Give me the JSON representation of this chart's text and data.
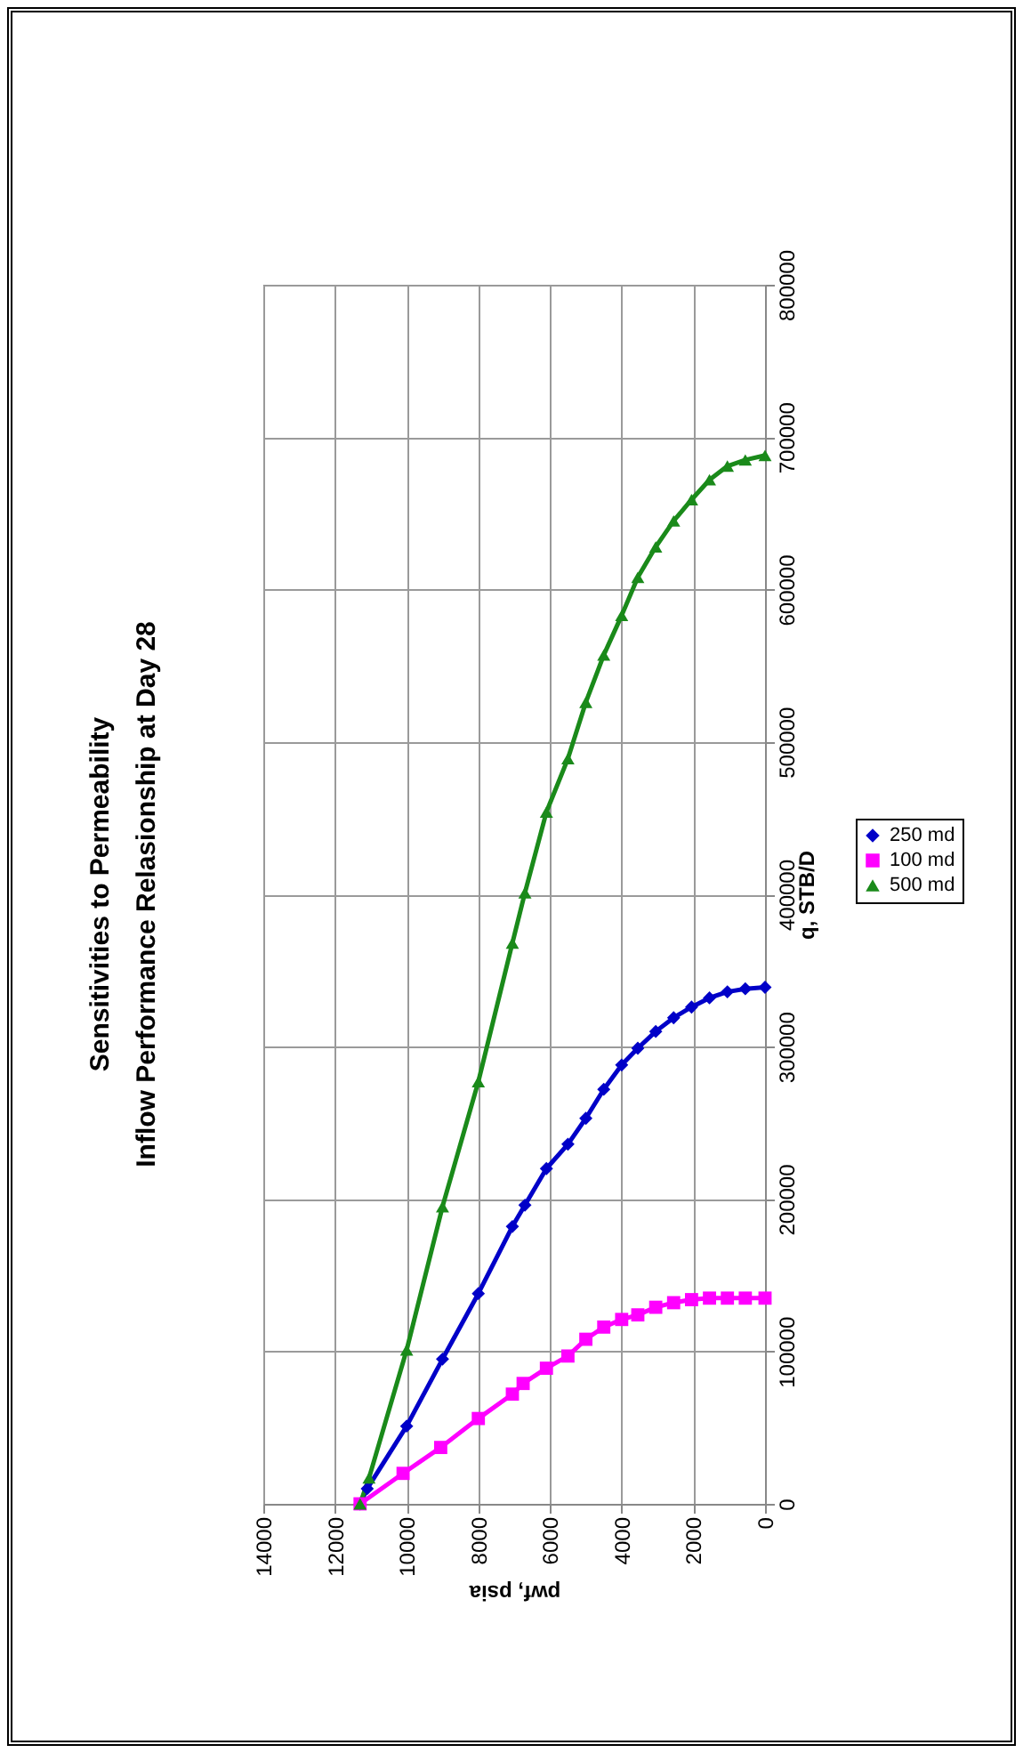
{
  "chart_data": {
    "type": "line",
    "title": "Sensitivities to Permeability\nInflow Performance Relasionship at Day 28",
    "xlabel": "pwf, psia",
    "ylabel": "q, STB/D",
    "xlim": [
      14000,
      0
    ],
    "xticks": [
      14000,
      12000,
      10000,
      8000,
      6000,
      4000,
      2000,
      0
    ],
    "ylim": [
      0,
      800000
    ],
    "yticks": [
      0,
      100000,
      200000,
      300000,
      400000,
      500000,
      600000,
      700000,
      800000
    ],
    "grid": true,
    "legend": "right",
    "series": [
      {
        "name": "250 md",
        "color": "#0000c8",
        "marker": "diamond",
        "x": [
          11300,
          11100,
          10000,
          9000,
          8000,
          7050,
          6700,
          6100,
          5500,
          5000,
          4500,
          4000,
          3550,
          3050,
          2550,
          2050,
          1550,
          1050,
          550,
          0
        ],
        "values": [
          0,
          10000,
          51000,
          95000,
          138000,
          182000,
          196000,
          220000,
          236000,
          253000,
          272000,
          288000,
          299000,
          310000,
          319000,
          326000,
          332000,
          336000,
          338000,
          339000
        ]
      },
      {
        "name": "100 md",
        "color": "#ff00ff",
        "marker": "square",
        "x": [
          11300,
          10100,
          9050,
          8000,
          7050,
          6750,
          6100,
          5500,
          5000,
          4500,
          4000,
          3550,
          3050,
          2550,
          2050,
          1550,
          1050,
          550,
          0
        ],
        "values": [
          0,
          20000,
          37000,
          56000,
          72000,
          79000,
          89000,
          97000,
          108000,
          116000,
          121000,
          124000,
          129000,
          132000,
          134000,
          135000,
          135000,
          135000,
          135000
        ]
      },
      {
        "name": "500 md",
        "color": "#1a8a1a",
        "marker": "triangle",
        "x": [
          11300,
          11050,
          10000,
          9000,
          8000,
          7050,
          6700,
          6100,
          5500,
          5000,
          4500,
          4000,
          3550,
          3050,
          2550,
          2050,
          1550,
          1050,
          550,
          0
        ],
        "values": [
          0,
          17000,
          101000,
          195000,
          277000,
          368000,
          401000,
          454000,
          489000,
          526000,
          557000,
          583000,
          608000,
          628000,
          645000,
          659000,
          672000,
          681000,
          685000,
          688000
        ]
      }
    ]
  }
}
